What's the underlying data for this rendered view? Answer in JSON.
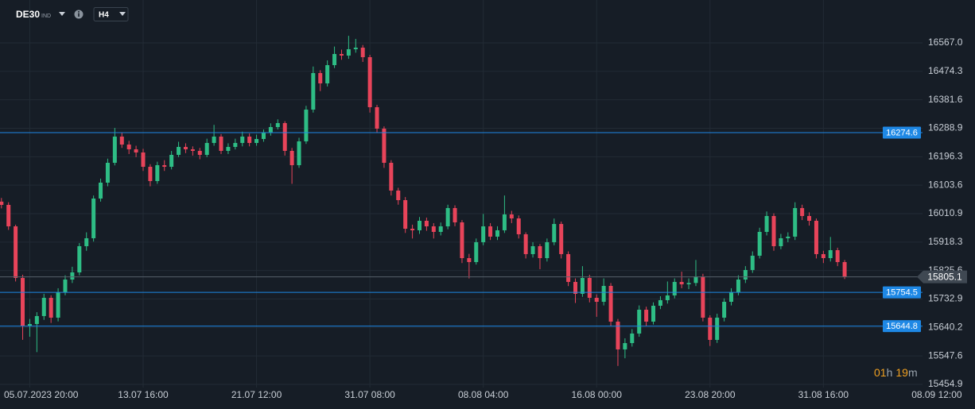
{
  "header": {
    "symbol": "DE30",
    "badge": "IND",
    "timeframe": "H4"
  },
  "countdown": [
    "01",
    "h",
    "19",
    "m"
  ],
  "chart_data": {
    "type": "candlestick",
    "up_color": "#2ebd85",
    "down_color": "#e8445a",
    "grid": true,
    "categories": [
      null,
      null,
      null,
      null,
      "05.07.2023 20:00",
      null,
      null,
      null,
      null,
      null,
      null,
      null,
      null,
      null,
      null,
      null,
      null,
      null,
      null,
      null,
      "13.07 16:00",
      null,
      null,
      null,
      null,
      null,
      null,
      null,
      null,
      null,
      null,
      null,
      null,
      null,
      null,
      null,
      "21.07 12:00",
      null,
      null,
      null,
      null,
      null,
      null,
      null,
      null,
      null,
      null,
      null,
      null,
      null,
      null,
      null,
      "31.07 08:00",
      null,
      null,
      null,
      null,
      null,
      null,
      null,
      null,
      null,
      null,
      null,
      null,
      null,
      null,
      null,
      "08.08 04:00",
      null,
      null,
      null,
      null,
      null,
      null,
      null,
      null,
      null,
      null,
      null,
      null,
      null,
      null,
      null,
      "16.08 00:00",
      null,
      null,
      null,
      null,
      null,
      null,
      null,
      null,
      null,
      null,
      null,
      null,
      null,
      null,
      null,
      "23.08 20:00",
      null,
      null,
      null,
      null,
      null,
      null,
      null,
      null,
      null,
      null,
      null,
      null,
      null,
      null,
      null,
      "31.08 16:00",
      null,
      null,
      null,
      null,
      null,
      null,
      null,
      null,
      null,
      null,
      null,
      null,
      null,
      null,
      null,
      "08.09 12:00"
    ],
    "open": [
      16050.0,
      16039.4,
      15969.6,
      15801.5,
      15646.3,
      15651.5,
      15677.4,
      15736.8,
      15672.2,
      15755.0,
      15796.3,
      15819.6,
      15904.9,
      15930.8,
      16060.1,
      16111.8,
      16176.5,
      16261.8,
      16235.9,
      16220.4,
      16210.1,
      16163.5,
      16117.0,
      16168.7,
      16163.5,
      16202.3,
      16228.2,
      16220.4,
      16215.3,
      16202.3,
      16241.1,
      16261.8,
      16215.3,
      16228.2,
      16241.1,
      16261.8,
      16241.1,
      16254.0,
      16274.7,
      16292.8,
      16305.8,
      16215.3,
      16168.7,
      16246.3,
      16349.7,
      16468.7,
      16435.1,
      16494.5,
      16530.8,
      16525.6,
      16546.3,
      16551.4,
      16520.4,
      16357.5,
      16287.7,
      16176.5,
      16086.0,
      16054.9,
      15961.8,
      15956.7,
      15987.7,
      15969.6,
      15951.5,
      15969.6,
      16029.1,
      15982.5,
      15866.1,
      15853.2,
      15917.9,
      15969.6,
      15936.0,
      15956.7,
      16008.4,
      15995.4,
      15943.7,
      15879.1,
      15904.9,
      15866.1,
      15917.9,
      15977.3,
      15879.1,
      15788.6,
      15749.8,
      15801.5,
      15736.8,
      15723.9,
      15775.6,
      15659.3,
      15568.8,
      15589.4,
      15620.5,
      15698.1,
      15659.3,
      15711.0,
      15729.1,
      15744.6,
      15788.6,
      15780.8,
      15785.2,
      15806.7,
      15672.2,
      15599.8,
      15672.2,
      15723.9,
      15755.0,
      15796.3,
      15827.4,
      15873.9,
      15951.5,
      16003.2,
      15904.9,
      15930.8,
      15936.0,
      16029.1,
      16003.2,
      15987.7,
      15879.1,
      15866.1,
      15892.0,
      15853.2,
      null,
      null,
      null,
      null,
      null,
      null,
      null,
      null,
      null,
      null,
      null,
      null,
      null
    ],
    "high": [
      16062,
      16048,
      15975,
      15812,
      15668,
      15690,
      15750,
      15745,
      15768,
      15810,
      15838,
      15915,
      15950,
      16070,
      16125,
      16190,
      16290,
      16275,
      16248,
      16232,
      16222,
      16172,
      16180,
      16185,
      16215,
      16245,
      16240,
      16230,
      16225,
      16255,
      16300,
      16270,
      16240,
      16255,
      16278,
      16272,
      16268,
      16285,
      16305,
      16318,
      16312,
      16225,
      16258,
      16362,
      16490,
      16478,
      16510,
      16555,
      16545,
      16590,
      16580,
      16560,
      16528,
      16365,
      16295,
      16185,
      16095,
      16065,
      15975,
      16000,
      15998,
      15980,
      15982,
      16040,
      16038,
      15990,
      15880,
      15930,
      16010,
      15980,
      15970,
      16070,
      16020,
      16005,
      15950,
      15918,
      15912,
      15930,
      15995,
      15985,
      15888,
      15800,
      15840,
      15812,
      15748,
      15800,
      15785,
      15668,
      15605,
      15635,
      15712,
      15708,
      15722,
      15742,
      15790,
      15800,
      15822,
      15800,
      15860,
      15815,
      15680,
      15685,
      15735,
      15768,
      15810,
      15840,
      15888,
      15965,
      16018,
      16012,
      15945,
      15950,
      16048,
      16040,
      16015,
      15995,
      15890,
      15935,
      15900,
      15860,
      null,
      null,
      null,
      null,
      null,
      null,
      null,
      null,
      null,
      null,
      null,
      null,
      null
    ],
    "low": [
      16028,
      15958,
      15790,
      15600,
      15610,
      15560,
      15665,
      15655,
      15660,
      15745,
      15785,
      15810,
      15890,
      15920,
      16050,
      16100,
      16168,
      16225,
      16205,
      16195,
      16150,
      16100,
      16108,
      16150,
      16155,
      16195,
      16208,
      16200,
      16188,
      16195,
      16232,
      16205,
      16205,
      16220,
      16230,
      16230,
      16232,
      16245,
      16265,
      16285,
      16200,
      16108,
      16160,
      16238,
      16340,
      16410,
      16425,
      16485,
      16512,
      16515,
      16535,
      16505,
      16340,
      16275,
      16160,
      16070,
      16040,
      15948,
      15930,
      15945,
      15955,
      15930,
      15940,
      15960,
      15970,
      15850,
      15800,
      15845,
      15908,
      15925,
      15925,
      15948,
      15980,
      15930,
      15865,
      15868,
      15830,
      15855,
      15908,
      15865,
      15775,
      15720,
      15740,
      15722,
      15675,
      15712,
      15645,
      15515,
      15540,
      15578,
      15610,
      15645,
      15650,
      15700,
      15718,
      15735,
      15768,
      15765,
      15775,
      15660,
      15580,
      15590,
      15660,
      15712,
      15745,
      15785,
      15818,
      15865,
      15940,
      15890,
      15895,
      15918,
      15925,
      15990,
      15972,
      15865,
      15850,
      15855,
      15840,
      15798,
      null,
      null,
      null,
      null,
      null,
      null,
      null,
      null,
      null,
      null,
      null,
      null,
      null
    ],
    "close": [
      16039.4,
      15969.6,
      15801.5,
      15646.3,
      15651.5,
      15677.4,
      15736.8,
      15672.2,
      15755.0,
      15796.3,
      15819.6,
      15904.9,
      15930.8,
      16060.1,
      16111.8,
      16176.5,
      16261.8,
      16235.9,
      16220.4,
      16210.1,
      16163.5,
      16117.0,
      16168.7,
      16163.5,
      16202.3,
      16228.2,
      16220.4,
      16215.3,
      16202.3,
      16241.1,
      16261.8,
      16215.3,
      16228.2,
      16241.1,
      16261.8,
      16241.1,
      16254.0,
      16274.7,
      16292.8,
      16305.8,
      16215.3,
      16168.7,
      16246.3,
      16349.7,
      16468.7,
      16435.1,
      16494.5,
      16530.8,
      16525.6,
      16546.3,
      16551.4,
      16520.4,
      16357.5,
      16287.7,
      16176.5,
      16086.0,
      16054.9,
      15961.8,
      15956.7,
      15987.7,
      15969.6,
      15951.5,
      15969.6,
      16029.1,
      15982.5,
      15866.1,
      15853.2,
      15917.9,
      15969.6,
      15936.0,
      15956.7,
      16008.4,
      15995.4,
      15943.7,
      15879.1,
      15904.9,
      15866.1,
      15917.9,
      15977.3,
      15879.1,
      15788.6,
      15749.8,
      15801.5,
      15736.8,
      15723.9,
      15775.6,
      15659.3,
      15568.8,
      15589.4,
      15620.5,
      15698.1,
      15659.3,
      15711.0,
      15729.1,
      15744.6,
      15788.6,
      15780.8,
      15785.2,
      15806.7,
      15672.2,
      15599.8,
      15672.2,
      15723.9,
      15755.0,
      15796.3,
      15827.4,
      15873.9,
      15951.5,
      16003.2,
      15904.9,
      15930.8,
      15936.0,
      16029.1,
      16003.2,
      15987.7,
      15879.1,
      15866.1,
      15892.0,
      15853.2,
      15805.1,
      null,
      null,
      null,
      null,
      null,
      null,
      null,
      null,
      null,
      null,
      null,
      null,
      null
    ],
    "ylim": [
      15444.6,
      16706.6
    ],
    "yticks": [
      {
        "value": 16567,
        "label": "16567.0"
      },
      16474.3,
      16381.6,
      16288.9,
      16196.3,
      16103.6,
      16010.9,
      15918.3,
      15825.6,
      15732.9,
      15640.2,
      15547.6,
      15454.9
    ],
    "levels": [
      {
        "value": 16274.6,
        "color": "#1e88e5"
      },
      {
        "value": 15754.5,
        "color": "#1e88e5"
      },
      {
        "value": 15644.8,
        "color": "#1e88e5"
      }
    ],
    "current_price": {
      "value": 15805.1,
      "color": "#3f4852"
    }
  }
}
